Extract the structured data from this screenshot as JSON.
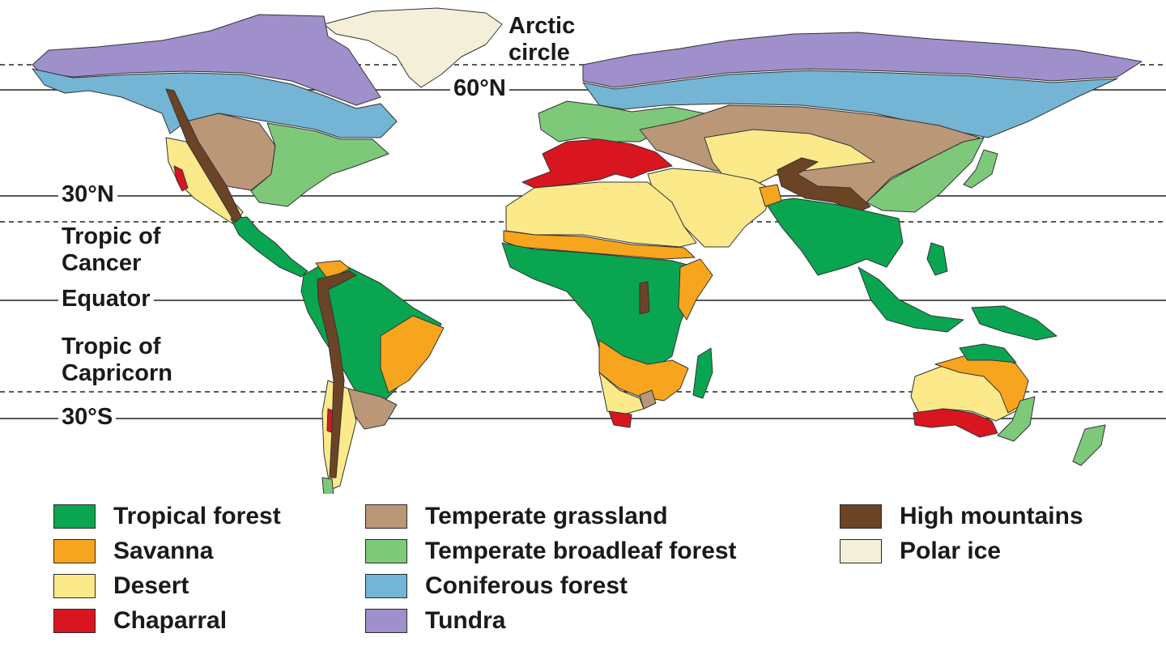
{
  "lines": {
    "arctic_circle": "Arctic\ncircle",
    "n60": "60°N",
    "n30": "30°N",
    "tropic_cancer": "Tropic of\nCancer",
    "equator": "Equator",
    "tropic_capricorn": "Tropic of\nCapricorn",
    "s30": "30°S"
  },
  "biome_colors": {
    "tropical_forest": "#0aa550",
    "savanna": "#f7a51e",
    "desert": "#fbe98a",
    "chaparral": "#d9161f",
    "temperate_grassland": "#b99777",
    "temperate_broadleaf_forest": "#7ec87a",
    "coniferous_forest": "#74b4d4",
    "tundra": "#9f8fcb",
    "high_mountains": "#6b4426",
    "polar_ice": "#f4efd8"
  },
  "legend": [
    {
      "key": "tropical_forest",
      "label": "Tropical forest"
    },
    {
      "key": "savanna",
      "label": "Savanna"
    },
    {
      "key": "desert",
      "label": "Desert"
    },
    {
      "key": "chaparral",
      "label": "Chaparral"
    },
    {
      "key": "temperate_grassland",
      "label": "Temperate grassland"
    },
    {
      "key": "temperate_broadleaf_forest",
      "label": "Temperate broadleaf forest"
    },
    {
      "key": "coniferous_forest",
      "label": "Coniferous forest"
    },
    {
      "key": "tundra",
      "label": "Tundra"
    },
    {
      "key": "high_mountains",
      "label": "High mountains"
    },
    {
      "key": "polar_ice",
      "label": "Polar ice"
    }
  ]
}
